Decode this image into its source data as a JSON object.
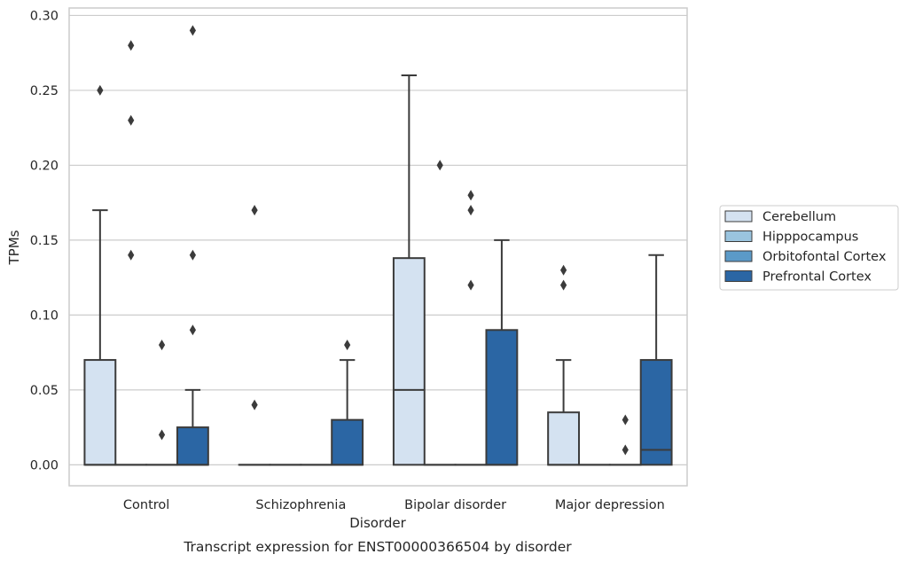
{
  "caption": "Transcript expression for ENST00000366504 by disorder",
  "chart_data": {
    "type": "box",
    "title": "",
    "xlabel": "Disorder",
    "ylabel": "TPMs",
    "ylim": [
      -0.014,
      0.305
    ],
    "yticks": [
      0.0,
      0.05,
      0.1,
      0.15,
      0.2,
      0.25,
      0.3
    ],
    "ytick_labels": [
      "0.00",
      "0.05",
      "0.10",
      "0.15",
      "0.20",
      "0.25",
      "0.30"
    ],
    "categories": [
      "Control",
      "Schizophrenia",
      "Bipolar disorder",
      "Major depression"
    ],
    "grid": "horizontal",
    "legend_position": "right",
    "series": [
      {
        "name": "Cerebellum",
        "color": "#d4e2f1",
        "boxes": [
          {
            "min": 0.0,
            "q1": 0.0,
            "median": 0.0,
            "q3": 0.07,
            "max": 0.17,
            "outliers": [
              0.25
            ]
          },
          {
            "min": 0.0,
            "q1": 0.0,
            "median": 0.0,
            "q3": 0.0,
            "max": 0.0,
            "outliers": [
              0.04,
              0.17
            ]
          },
          {
            "min": 0.0,
            "q1": 0.0,
            "median": 0.05,
            "q3": 0.138,
            "max": 0.26,
            "outliers": []
          },
          {
            "min": 0.0,
            "q1": 0.0,
            "median": 0.0,
            "q3": 0.035,
            "max": 0.07,
            "outliers": [
              0.12,
              0.13
            ]
          }
        ]
      },
      {
        "name": "Hipppocampus",
        "color": "#9ac4df",
        "boxes": [
          {
            "min": 0.0,
            "q1": 0.0,
            "median": 0.0,
            "q3": 0.0,
            "max": 0.0,
            "outliers": [
              0.14,
              0.23,
              0.28
            ]
          },
          {
            "min": 0.0,
            "q1": 0.0,
            "median": 0.0,
            "q3": 0.0,
            "max": 0.0,
            "outliers": []
          },
          {
            "min": 0.0,
            "q1": 0.0,
            "median": 0.0,
            "q3": 0.0,
            "max": 0.0,
            "outliers": [
              0.2
            ]
          },
          {
            "min": 0.0,
            "q1": 0.0,
            "median": 0.0,
            "q3": 0.0,
            "max": 0.0,
            "outliers": []
          }
        ]
      },
      {
        "name": "Orbitofontal Cortex",
        "color": "#5b9ac8",
        "boxes": [
          {
            "min": 0.0,
            "q1": 0.0,
            "median": 0.0,
            "q3": 0.0,
            "max": 0.0,
            "outliers": [
              0.02,
              0.08
            ]
          },
          {
            "min": 0.0,
            "q1": 0.0,
            "median": 0.0,
            "q3": 0.0,
            "max": 0.0,
            "outliers": []
          },
          {
            "min": 0.0,
            "q1": 0.0,
            "median": 0.0,
            "q3": 0.0,
            "max": 0.0,
            "outliers": [
              0.12,
              0.17,
              0.18
            ]
          },
          {
            "min": 0.0,
            "q1": 0.0,
            "median": 0.0,
            "q3": 0.0,
            "max": 0.0,
            "outliers": [
              0.01,
              0.03
            ]
          }
        ]
      },
      {
        "name": "Prefrontal Cortex",
        "color": "#2b66a4",
        "boxes": [
          {
            "min": 0.0,
            "q1": 0.0,
            "median": 0.0,
            "q3": 0.025,
            "max": 0.05,
            "outliers": [
              0.09,
              0.14,
              0.29
            ]
          },
          {
            "min": 0.0,
            "q1": 0.0,
            "median": 0.0,
            "q3": 0.03,
            "max": 0.07,
            "outliers": [
              0.08
            ]
          },
          {
            "min": 0.0,
            "q1": 0.0,
            "median": 0.0,
            "q3": 0.09,
            "max": 0.15,
            "outliers": []
          },
          {
            "min": 0.0,
            "q1": 0.0,
            "median": 0.01,
            "q3": 0.07,
            "max": 0.14,
            "outliers": []
          }
        ]
      }
    ]
  },
  "colors": {
    "grid": "#cccccc",
    "frame": "#cccccc",
    "line": "#3b3b3b",
    "text": "#262626"
  }
}
